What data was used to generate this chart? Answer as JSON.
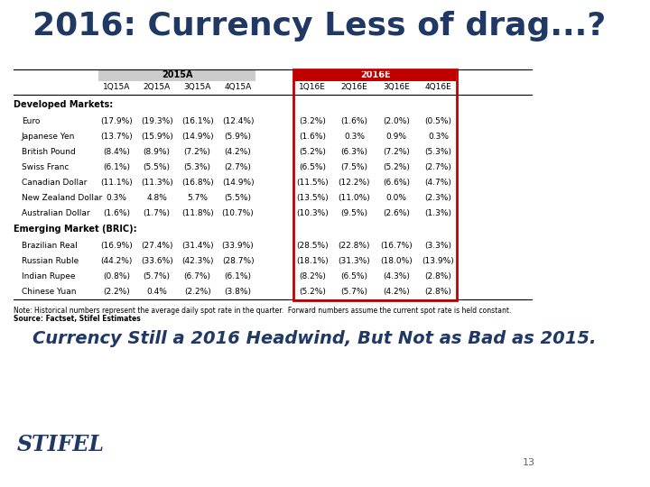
{
  "title": "2016: Currency Less of drag...?",
  "title_color": "#1f3864",
  "title_fontsize": 26,
  "background_color": "#ffffff",
  "subtitle_text": "Currency Still a 2016 Headwind, But Not as Bad as 2015.",
  "subtitle_color": "#1f3864",
  "subtitle_fontsize": 14,
  "note_text": "Note: Historical numbers represent the average daily spot rate in the quarter.  Forward numbers assume the current spot rate is held constant.",
  "note_text2": "Source: Factset, Stifel Estimates",
  "note_fontsize": 6.0,
  "stifel_text": "STIFEL",
  "page_number": "13",
  "section1_header": "Developed Markets:",
  "section2_header": "Emerging Market (BRIC):",
  "rows_developed": [
    [
      "Euro",
      "(17.9%)",
      "(19.3%)",
      "(16.1%)",
      "(12.4%)",
      "(3.2%)",
      "(1.6%)",
      "(2.0%)",
      "(0.5%)"
    ],
    [
      "Japanese Yen",
      "(13.7%)",
      "(15.9%)",
      "(14.9%)",
      "(5.9%)",
      "(1.6%)",
      "0.3%",
      "0.9%",
      "0.3%"
    ],
    [
      "British Pound",
      "(8.4%)",
      "(8.9%)",
      "(7.2%)",
      "(4.2%)",
      "(5.2%)",
      "(6.3%)",
      "(7.2%)",
      "(5.3%)"
    ],
    [
      "Swiss Franc",
      "(6.1%)",
      "(5.5%)",
      "(5.3%)",
      "(2.7%)",
      "(6.5%)",
      "(7.5%)",
      "(5.2%)",
      "(2.7%)"
    ],
    [
      "Canadian Dollar",
      "(11.1%)",
      "(11.3%)",
      "(16.8%)",
      "(14.9%)",
      "(11.5%)",
      "(12.2%)",
      "(6.6%)",
      "(4.7%)"
    ],
    [
      "New Zealand Dollar",
      "0.3%",
      "4.8%",
      "5.7%",
      "(5.5%)",
      "(13.5%)",
      "(11.0%)",
      "0.0%",
      "(2.3%)"
    ],
    [
      "Australian Dollar",
      "(1.6%)",
      "(1.7%)",
      "(11.8%)",
      "(10.7%)",
      "(10.3%)",
      "(9.5%)",
      "(2.6%)",
      "(1.3%)"
    ]
  ],
  "rows_emerging": [
    [
      "Brazilian Real",
      "(16.9%)",
      "(27.4%)",
      "(31.4%)",
      "(33.9%)",
      "(28.5%)",
      "(22.8%)",
      "(16.7%)",
      "(3.3%)"
    ],
    [
      "Russian Ruble",
      "(44.2%)",
      "(33.6%)",
      "(42.3%)",
      "(28.7%)",
      "(18.1%)",
      "(31.3%)",
      "(18.0%)",
      "(13.9%)"
    ],
    [
      "Indian Rupee",
      "(0.8%)",
      "(5.7%)",
      "(6.7%)",
      "(6.1%)",
      "(8.2%)",
      "(6.5%)",
      "(4.3%)",
      "(2.8%)"
    ],
    [
      "Chinese Yuan",
      "(2.2%)",
      "0.4%",
      "(2.2%)",
      "(3.8%)",
      "(5.2%)",
      "(5.7%)",
      "(4.2%)",
      "(2.8%)"
    ]
  ],
  "header_bg_2015": "#cccccc",
  "header_bg_2016": "#c00000",
  "highlight_box_color": "#c00000"
}
